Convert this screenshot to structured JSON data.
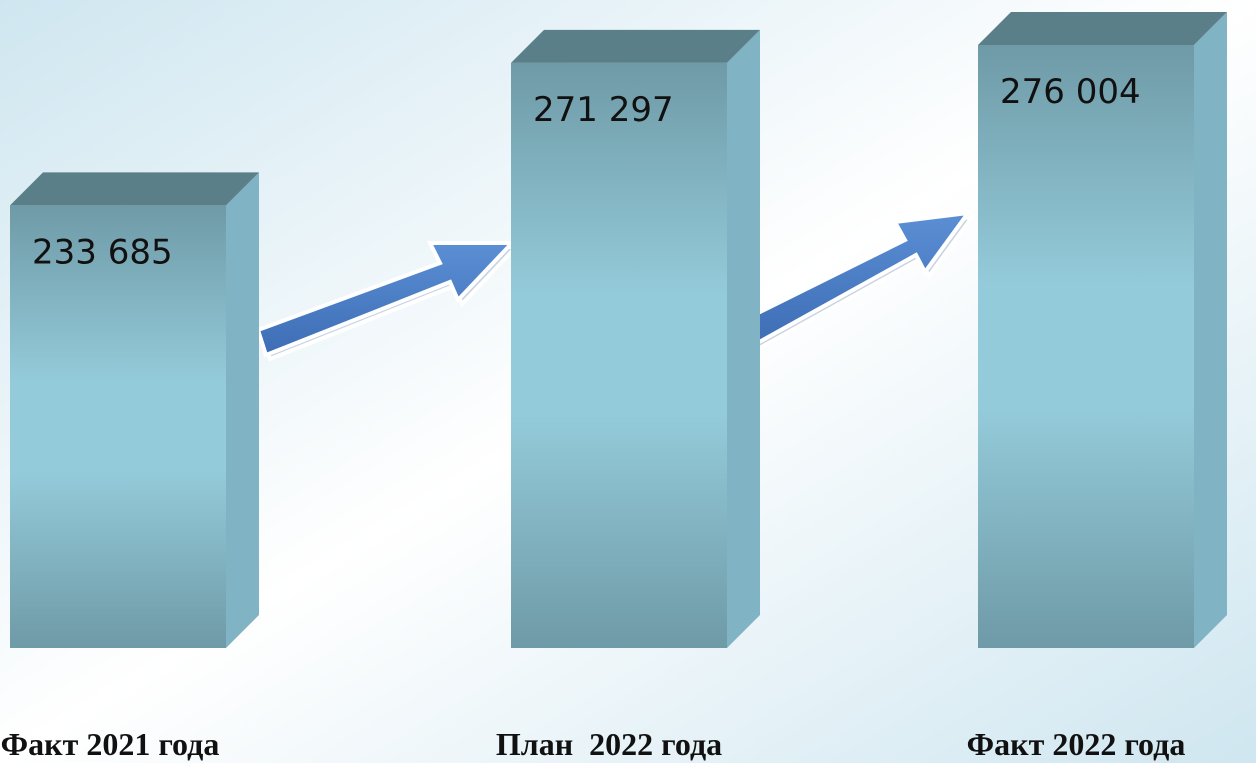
{
  "chart_data": {
    "type": "bar3d",
    "categories": [
      "Факт 2021 года",
      "План  2022 года",
      "Факт 2022 года"
    ],
    "values": [
      233685,
      271297,
      276004
    ],
    "value_labels": [
      "233 685",
      "271 297",
      "276 004"
    ]
  }
}
